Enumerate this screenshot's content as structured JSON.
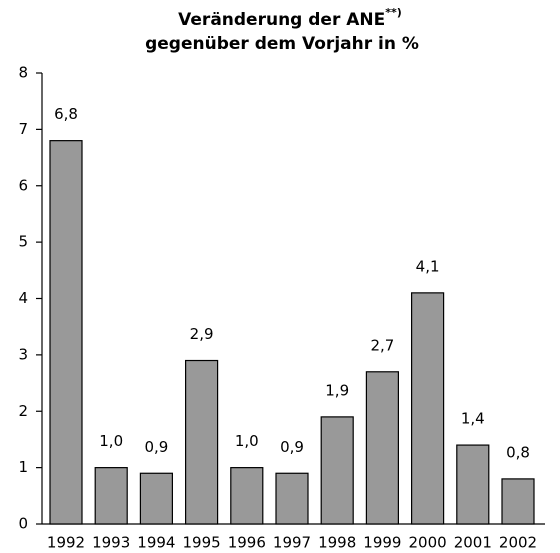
{
  "chart_data": {
    "type": "bar",
    "title": "Veränderung der ANE",
    "title_superscript": "**)",
    "subtitle": "gegenüber dem Vorjahr in %",
    "categories": [
      "1992",
      "1993",
      "1994",
      "1995",
      "1996",
      "1997",
      "1998",
      "1999",
      "2000",
      "2001",
      "2002"
    ],
    "values": [
      6.8,
      1.0,
      0.9,
      2.9,
      1.0,
      0.9,
      1.9,
      2.7,
      4.1,
      1.4,
      0.8
    ],
    "value_labels": [
      "6,8",
      "1,0",
      "0,9",
      "2,9",
      "1,0",
      "0,9",
      "1,9",
      "2,7",
      "4,1",
      "1,4",
      "0,8"
    ],
    "color": "#999999",
    "ylim": [
      0,
      8
    ],
    "yticks": [
      0,
      1,
      2,
      3,
      4,
      5,
      6,
      7,
      8
    ],
    "grid": false
  }
}
